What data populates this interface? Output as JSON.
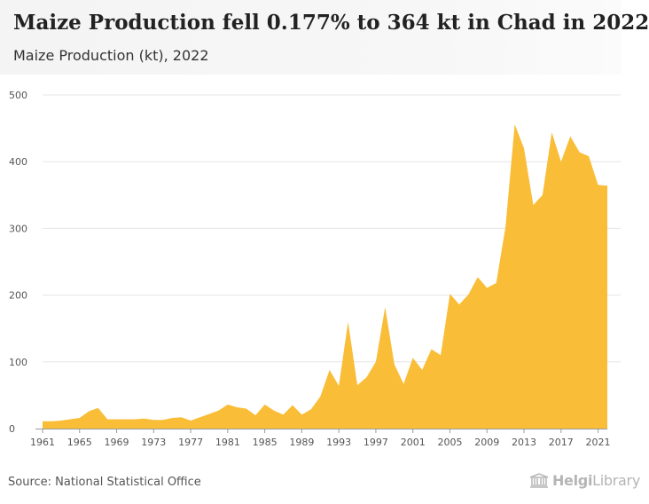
{
  "header": {
    "title": "Maize Production fell 0.177% to 364 kt in Chad in 2022",
    "subtitle": "Maize Production (kt), 2022"
  },
  "footer": {
    "source": "Source: National Statistical Office",
    "logo_main": "Helgi",
    "logo_suffix": "Library"
  },
  "colors": {
    "area_fill": "#f9bd38",
    "grid": "#e6e6e6",
    "axis_text": "#555555"
  },
  "chart_data": {
    "type": "area",
    "title": "Maize Production fell 0.177% to 364 kt in Chad in 2022",
    "subtitle": "Maize Production (kt), 2022",
    "xlabel": "",
    "ylabel": "",
    "xlim": [
      1961,
      2022
    ],
    "ylim": [
      0,
      500
    ],
    "grid": true,
    "y_ticks": [
      0,
      100,
      200,
      300,
      400,
      500
    ],
    "x_ticks": [
      1961,
      1965,
      1969,
      1973,
      1977,
      1981,
      1985,
      1989,
      1993,
      1997,
      2001,
      2005,
      2009,
      2013,
      2017,
      2021
    ],
    "x": [
      1961,
      1962,
      1963,
      1964,
      1965,
      1966,
      1967,
      1968,
      1969,
      1970,
      1971,
      1972,
      1973,
      1974,
      1975,
      1976,
      1977,
      1978,
      1979,
      1980,
      1981,
      1982,
      1983,
      1984,
      1985,
      1986,
      1987,
      1988,
      1989,
      1990,
      1991,
      1992,
      1993,
      1994,
      1995,
      1996,
      1997,
      1998,
      1999,
      2000,
      2001,
      2002,
      2003,
      2004,
      2005,
      2006,
      2007,
      2008,
      2009,
      2010,
      2011,
      2012,
      2013,
      2014,
      2015,
      2016,
      2017,
      2018,
      2019,
      2020,
      2021,
      2022
    ],
    "series": [
      {
        "values": [
          11,
          11,
          12,
          14,
          16,
          26,
          31,
          14,
          14,
          14,
          14,
          15,
          13,
          13,
          16,
          17,
          12,
          17,
          22,
          27,
          36,
          32,
          30,
          20,
          36,
          27,
          21,
          35,
          21,
          29,
          48,
          88,
          64,
          160,
          65,
          77,
          100,
          182,
          96,
          67,
          106,
          88,
          119,
          110,
          202,
          186,
          201,
          227,
          211,
          218,
          302,
          456,
          420,
          335,
          350,
          444,
          400,
          438,
          414,
          408,
          365,
          364
        ]
      }
    ]
  }
}
